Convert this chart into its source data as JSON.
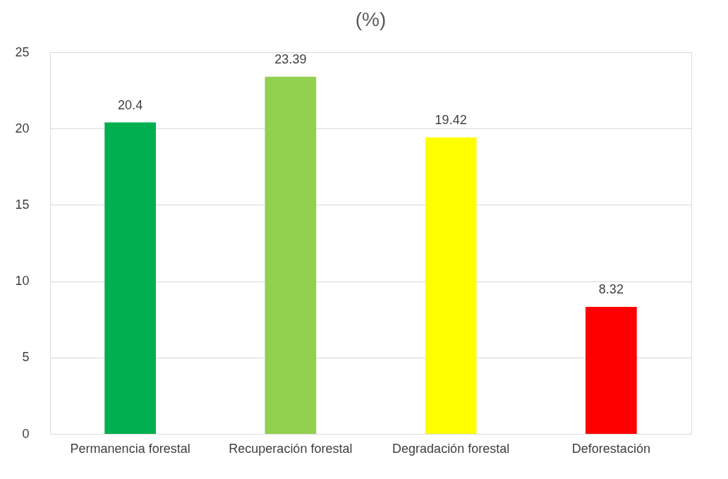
{
  "chart_data": {
    "type": "bar",
    "title": "(%)",
    "categories": [
      "Permanencia forestal",
      "Recuperación forestal",
      "Degradación forestal",
      "Deforestación"
    ],
    "values": [
      20.4,
      23.39,
      19.42,
      8.32
    ],
    "colors": [
      "#00b050",
      "#92d050",
      "#ffff00",
      "#ff0000"
    ],
    "ylim": [
      0,
      25
    ],
    "yticks": [
      0,
      5,
      10,
      15,
      20,
      25
    ],
    "grid": "y",
    "data_labels": true
  }
}
